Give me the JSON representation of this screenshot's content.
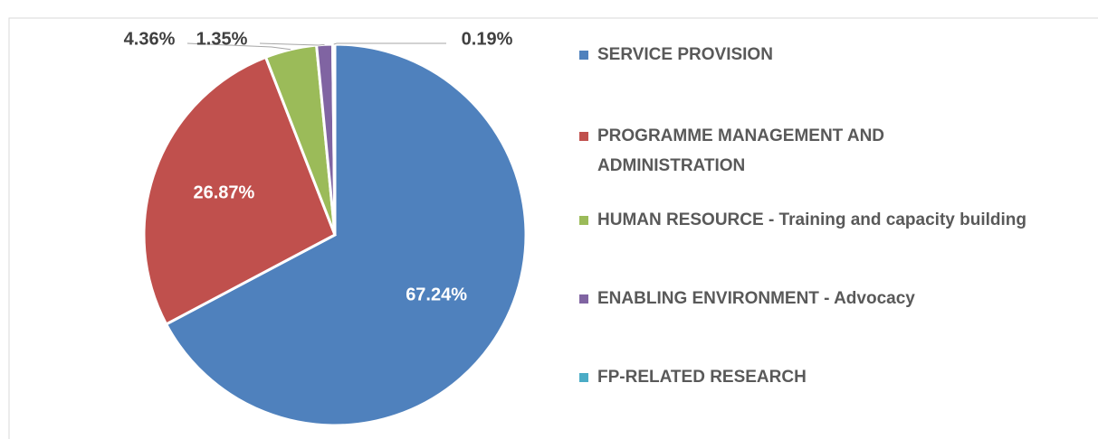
{
  "chart_data": {
    "type": "pie",
    "categories": [
      "SERVICE PROVISION",
      "PROGRAMME MANAGEMENT AND ADMINISTRATION",
      "HUMAN RESOURCE - Training and capacity building",
      "ENABLING ENVIRONMENT - Advocacy",
      "FP-RELATED RESEARCH"
    ],
    "values": [
      67.24,
      26.87,
      4.36,
      1.35,
      0.19
    ],
    "value_labels": [
      "67.24%",
      "26.87%",
      "4.36%",
      "1.35%",
      "0.19%"
    ],
    "colors": [
      "#4f81bd",
      "#c0504d",
      "#9bbb59",
      "#8064a2",
      "#4bacc6"
    ],
    "legend": "right"
  }
}
